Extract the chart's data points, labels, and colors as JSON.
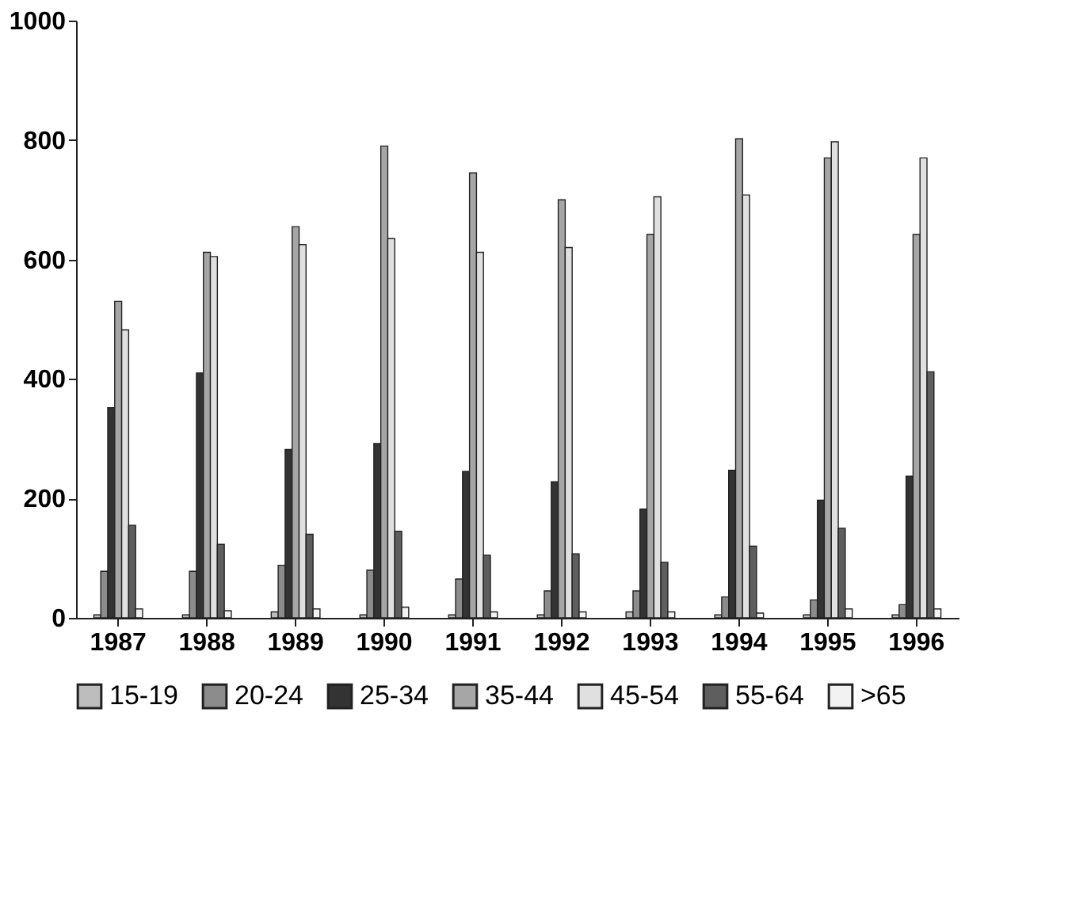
{
  "chart_data": {
    "type": "bar",
    "categories": [
      "1987",
      "1988",
      "1989",
      "1990",
      "1991",
      "1992",
      "1993",
      "1994",
      "1995",
      "1996"
    ],
    "series": [
      {
        "name": "15-19",
        "color": "#bdbdbd",
        "values": [
          5,
          5,
          10,
          5,
          5,
          5,
          10,
          5,
          5,
          5
        ]
      },
      {
        "name": "20-24",
        "color": "#8c8c8c",
        "values": [
          78,
          78,
          88,
          80,
          65,
          45,
          45,
          35,
          30,
          22
        ]
      },
      {
        "name": "25-34",
        "color": "#333333",
        "values": [
          352,
          410,
          282,
          292,
          245,
          228,
          182,
          247,
          197,
          237
        ]
      },
      {
        "name": "35-44",
        "color": "#a6a6a6",
        "values": [
          530,
          612,
          655,
          790,
          745,
          700,
          642,
          802,
          770,
          642
        ]
      },
      {
        "name": "45-54",
        "color": "#e0e0e0",
        "values": [
          482,
          605,
          625,
          635,
          612,
          620,
          705,
          708,
          797,
          770
        ]
      },
      {
        "name": "55-64",
        "color": "#5e5e5e",
        "values": [
          155,
          123,
          140,
          145,
          105,
          107,
          93,
          120,
          150,
          412
        ]
      },
      {
        "name": ">65",
        "color": "#f2f2f2",
        "values": [
          15,
          12,
          15,
          18,
          10,
          10,
          10,
          8,
          15,
          15
        ]
      }
    ],
    "ylim": [
      0,
      1000
    ],
    "yticks": [
      0,
      200,
      400,
      600,
      800,
      1000
    ],
    "grid": false,
    "legend": "bottom"
  }
}
